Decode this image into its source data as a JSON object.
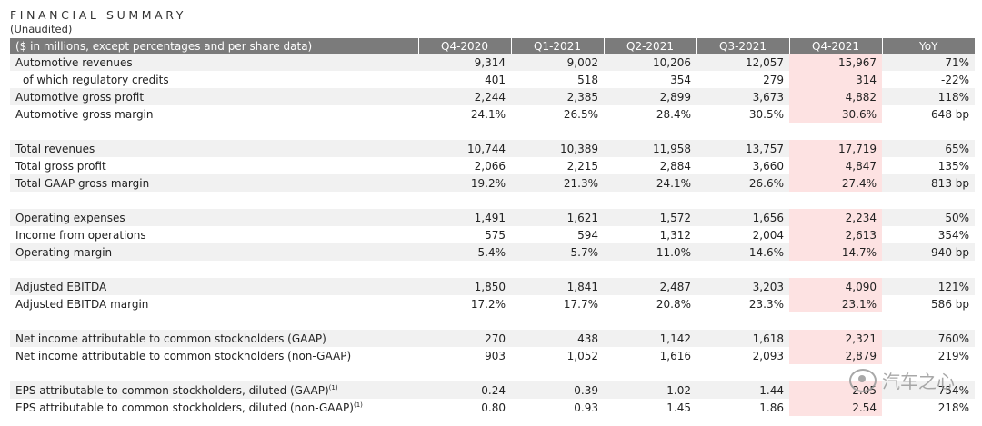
{
  "title": "FINANCIAL SUMMARY",
  "subtitle": "(Unaudited)",
  "header": {
    "label": "($ in millions, except percentages and per share data)",
    "columns": [
      "Q4-2020",
      "Q1-2021",
      "Q2-2021",
      "Q3-2021",
      "Q4-2021",
      "YoY"
    ]
  },
  "rows": [
    {
      "label": "Automotive revenues",
      "values": [
        "9,314",
        "9,002",
        "10,206",
        "12,057",
        "15,967",
        "71%"
      ]
    },
    {
      "label": "of which regulatory credits",
      "values": [
        "401",
        "518",
        "354",
        "279",
        "314",
        "-22%"
      ]
    },
    {
      "label": "Automotive gross profit",
      "values": [
        "2,244",
        "2,385",
        "2,899",
        "3,673",
        "4,882",
        "118%"
      ]
    },
    {
      "label": "Automotive gross margin",
      "values": [
        "24.1%",
        "26.5%",
        "28.4%",
        "30.5%",
        "30.6%",
        "648 bp"
      ]
    },
    {
      "label": "Total revenues",
      "values": [
        "10,744",
        "10,389",
        "11,958",
        "13,757",
        "17,719",
        "65%"
      ]
    },
    {
      "label": "Total gross profit",
      "values": [
        "2,066",
        "2,215",
        "2,884",
        "3,660",
        "4,847",
        "135%"
      ]
    },
    {
      "label": "Total GAAP gross margin",
      "values": [
        "19.2%",
        "21.3%",
        "24.1%",
        "26.6%",
        "27.4%",
        "813 bp"
      ]
    },
    {
      "label": "Operating expenses",
      "values": [
        "1,491",
        "1,621",
        "1,572",
        "1,656",
        "2,234",
        "50%"
      ]
    },
    {
      "label": "Income from operations",
      "values": [
        "575",
        "594",
        "1,312",
        "2,004",
        "2,613",
        "354%"
      ]
    },
    {
      "label": "Operating margin",
      "values": [
        "5.4%",
        "5.7%",
        "11.0%",
        "14.6%",
        "14.7%",
        "940 bp"
      ]
    },
    {
      "label": "Adjusted EBITDA",
      "values": [
        "1,850",
        "1,841",
        "2,487",
        "3,203",
        "4,090",
        "121%"
      ]
    },
    {
      "label": "Adjusted EBITDA margin",
      "values": [
        "17.2%",
        "17.7%",
        "20.8%",
        "23.3%",
        "23.1%",
        "586 bp"
      ]
    },
    {
      "label": "Net income attributable to common stockholders (GAAP)",
      "values": [
        "270",
        "438",
        "1,142",
        "1,618",
        "2,321",
        "760%"
      ]
    },
    {
      "label": "Net income attributable to common stockholders (non-GAAP)",
      "values": [
        "903",
        "1,052",
        "1,616",
        "2,093",
        "2,879",
        "219%"
      ]
    },
    {
      "label": "EPS attributable to common stockholders, diluted (GAAP)",
      "sup": "(1)",
      "values": [
        "0.24",
        "0.39",
        "1.02",
        "1.44",
        "2.05",
        "754%"
      ]
    },
    {
      "label": "EPS attributable to common stockholders, diluted (non-GAAP)",
      "sup": "(1)",
      "values": [
        "0.80",
        "0.93",
        "1.45",
        "1.86",
        "2.54",
        "218%"
      ]
    }
  ],
  "watermark": "汽车之心",
  "colors": {
    "header_bg": "#7b7b7b",
    "stripe": "#f1f1f1",
    "highlight": "#fde2e2"
  }
}
